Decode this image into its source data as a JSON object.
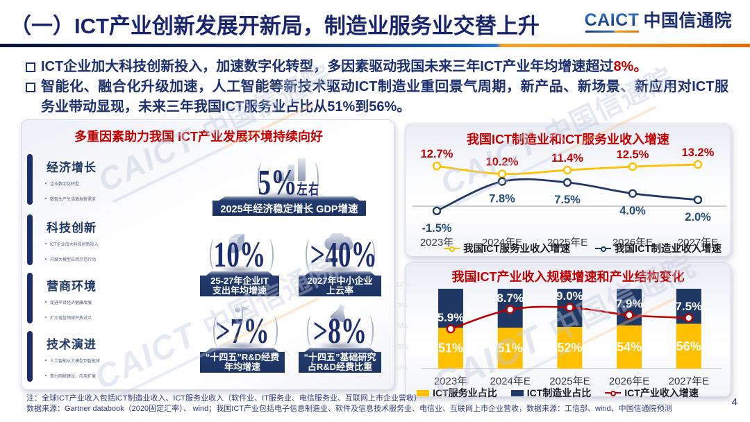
{
  "slide": {
    "title": "（一）ICT产业创新发展开新局，制造业服务业交替上升",
    "page_number": "4",
    "logo": {
      "latin": "CAICT",
      "cn": "中国信通院"
    },
    "watermark": {
      "latin": "CAICT",
      "cn": "中国信通院"
    },
    "colors": {
      "navy": "#1f3864",
      "red": "#c00000",
      "yellow": "#ffc000"
    }
  },
  "bullets": [
    {
      "lines": [
        [
          {
            "text": "ICT企业加大科技创新投入，加速数字化转型，多因素驱动我国未来三年ICT产业年均增速超过",
            "red": false
          },
          {
            "text": "8%。",
            "red": true
          }
        ]
      ]
    },
    {
      "lines": [
        [
          {
            "text": "智能化、融合化升级加速，人工智能等新技术驱动ICT制造业重回景气周期，新产品、新场景、新应用对ICT服",
            "red": false
          }
        ],
        [
          {
            "text": "务业带动显现，未来三年我国ICT服务业占比从51%到56%。",
            "red": false
          }
        ]
      ]
    }
  ],
  "factors_panel": {
    "title": "多重因素助力我国 ICT产业发展环境持续向好",
    "sections": [
      {
        "title": "经济增长",
        "items": [
          "企业数字化转型",
          "数智生产生活激发新需求"
        ]
      },
      {
        "title": "科技创新",
        "items": [
          "ICT企业加大科技创新投入",
          "开展大模型应用示范行动"
        ]
      },
      {
        "title": "营商环境",
        "items": [
          "促进平台经济健康发展",
          "扩大电信领域开放试点"
        ]
      },
      {
        "title": "技术演进",
        "items": [
          "人工智能从大模型到智能体",
          "算力网络建设、应用扩展"
        ]
      }
    ],
    "stats": [
      {
        "value": "5%",
        "suffix": "左右",
        "caption_lines": [
          "2025年经济稳定增长 GDP增速"
        ],
        "icon": "bar-chart"
      },
      {
        "value": "10%",
        "caption_lines": [
          "25-27年企业IT",
          "支出年均增速"
        ],
        "icon": "building"
      },
      {
        "value": ">40%",
        "caption_lines": [
          "2027年中小企业",
          "上云率"
        ],
        "icon": "cloud"
      },
      {
        "value": ">7%",
        "caption_lines": [
          "“十四五”R&D经费",
          "年均增速"
        ],
        "icon": "person"
      },
      {
        "value": ">8%",
        "caption_lines": [
          "“十四五”基础研究",
          "占R&D经费比重"
        ],
        "icon": "flask"
      }
    ]
  },
  "chart_data": [
    {
      "type": "line",
      "title": "我国ICT制造业和ICT服务业收入增速",
      "categories": [
        "2023年",
        "2024年E",
        "2025年E",
        "2026年E",
        "2027年E"
      ],
      "series": [
        {
          "name": "我国ICT服务业收入增速",
          "color": "#ffc000",
          "values": [
            12.7,
            10.2,
            11.4,
            12.5,
            13.2
          ],
          "label_color": "#c00000",
          "label_side": "above"
        },
        {
          "name": "我国ICT制造业收入增速",
          "color": "#1f3864",
          "values": [
            -1.5,
            7.8,
            7.5,
            4.0,
            2.0
          ],
          "label_color": "#1f4e79",
          "label_side": "below"
        }
      ],
      "ylabel": "",
      "xlabel": "",
      "grid": false,
      "zero_line": true,
      "legend_position": "bottom"
    },
    {
      "type": "bar-line",
      "title": "我国ICT产业收入规模增速和产业结构变化",
      "categories": [
        "2023年",
        "2024年E",
        "2025年E",
        "2026年E",
        "2027年E"
      ],
      "bar_series": [
        {
          "name": "ICT服务业占比",
          "color": "#ffc000",
          "values": [
            51,
            51,
            52,
            54,
            56
          ]
        },
        {
          "name": "ICT制造业占比",
          "color": "#1f3864",
          "values": [
            49,
            49,
            48,
            46,
            44
          ]
        }
      ],
      "line_series": {
        "name": "ICT产业收入增速",
        "color": "#c00000",
        "values": [
          5.9,
          8.7,
          9.0,
          7.9,
          7.5
        ]
      },
      "y2_axis_labels": [
        "12%",
        "9%",
        "6%",
        "3%",
        "0%"
      ],
      "stacked": true,
      "bar_unit": "%",
      "legend_position": "bottom"
    }
  ],
  "notes": [
    "注：全球ICT产业收入包括ICT制造业收入、ICT服务业收入（软件业、IT服务业、电信服务业、互联网上市企业营收）",
    "数据来源：Gartner databook（2020固定汇率）、 wind；我国ICT产业包括电子信息制造业、软件及信息技术服务业、电信业、互联网上市企业营收，数据来源：工信部、wind、中国信通院预测"
  ]
}
